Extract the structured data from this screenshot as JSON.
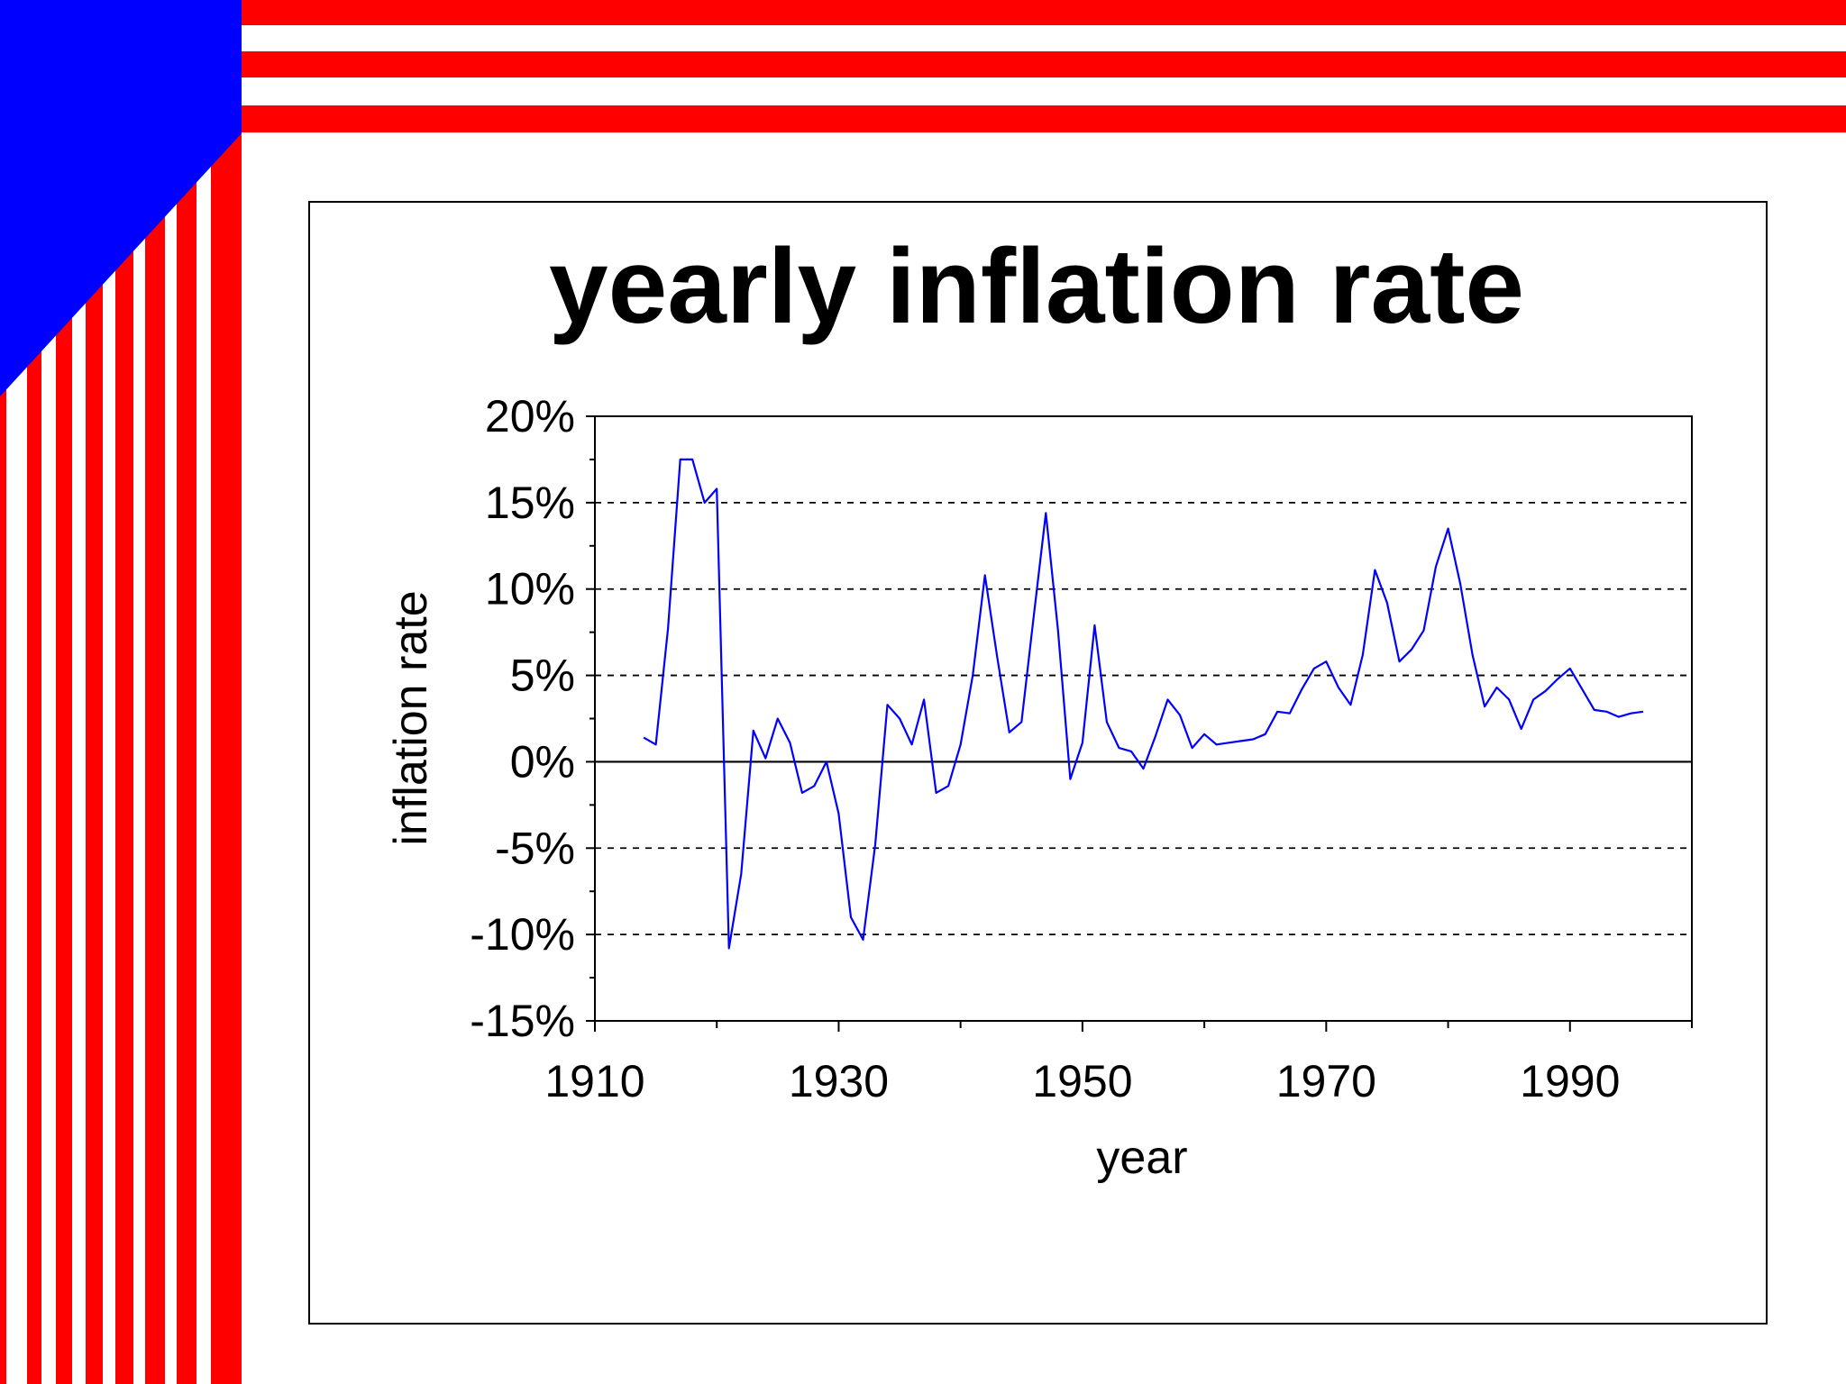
{
  "colors": {
    "stripe_red": "#ff0000",
    "canton_blue": "#0000ff",
    "series_line": "#0000ff"
  },
  "chart_data": {
    "type": "line",
    "title": "yearly inflation rate",
    "xlabel": "year",
    "ylabel": "inflation rate",
    "xlim": [
      1910,
      2000
    ],
    "ylim": [
      -15,
      20
    ],
    "x_ticks": [
      1910,
      1930,
      1950,
      1970,
      1990
    ],
    "x_tick_labels": [
      "1910",
      "1930",
      "1950",
      "1970",
      "1990"
    ],
    "y_ticks": [
      20,
      15,
      10,
      5,
      0,
      -5,
      -10,
      -15
    ],
    "y_tick_labels": [
      "20%",
      "15%",
      "10%",
      "5%",
      "0%",
      "-5%",
      "-10%",
      "-15%"
    ],
    "grid": "horizontal dashed",
    "series": [
      {
        "x": [
          1914,
          1915,
          1916,
          1917,
          1918,
          1919,
          1920,
          1921,
          1922,
          1923,
          1924,
          1925,
          1926,
          1927,
          1928,
          1929,
          1930,
          1931,
          1932,
          1933,
          1934,
          1935,
          1936,
          1937,
          1938,
          1939,
          1940,
          1941,
          1942,
          1943,
          1944,
          1945,
          1946,
          1947,
          1948,
          1949,
          1950,
          1951,
          1952,
          1953,
          1954,
          1955,
          1956,
          1957,
          1958,
          1959,
          1960,
          1961,
          1962,
          1963,
          1964,
          1965,
          1966,
          1967,
          1968,
          1969,
          1970,
          1971,
          1972,
          1973,
          1974,
          1975,
          1976,
          1977,
          1978,
          1979,
          1980,
          1981,
          1982,
          1983,
          1984,
          1985,
          1986,
          1987,
          1988,
          1989,
          1990,
          1991,
          1992,
          1993,
          1994,
          1995,
          1996
        ],
        "values": [
          1.4,
          1.0,
          7.7,
          17.5,
          17.5,
          15.0,
          15.8,
          -10.8,
          -6.5,
          1.8,
          0.2,
          2.5,
          1.1,
          -1.8,
          -1.4,
          0.0,
          -3.0,
          -9.0,
          -10.3,
          -4.8,
          3.3,
          2.5,
          1.0,
          3.6,
          -1.8,
          -1.4,
          1.0,
          5.0,
          10.8,
          6.1,
          1.7,
          2.3,
          8.4,
          14.4,
          7.6,
          -1.0,
          1.1,
          7.9,
          2.3,
          0.8,
          0.6,
          -0.4,
          1.5,
          3.6,
          2.7,
          0.8,
          1.6,
          1.0,
          1.1,
          1.2,
          1.3,
          1.6,
          2.9,
          2.8,
          4.2,
          5.4,
          5.8,
          4.3,
          3.3,
          6.2,
          11.1,
          9.2,
          5.8,
          6.5,
          7.6,
          11.3,
          13.5,
          10.3,
          6.2,
          3.2,
          4.3,
          3.6,
          1.9,
          3.6,
          4.1,
          4.8,
          5.4,
          4.2,
          3.0,
          2.9,
          2.6,
          2.8,
          2.9
        ]
      }
    ]
  }
}
